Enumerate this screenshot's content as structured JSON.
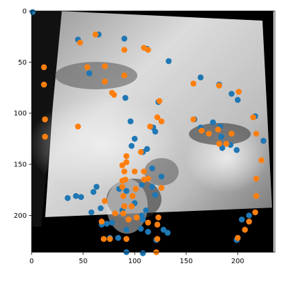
{
  "chart_data": {
    "type": "scatter",
    "title": "",
    "xlabel": "",
    "ylabel": "",
    "xlim": [
      0,
      236
    ],
    "ylim": [
      236,
      0
    ],
    "y_inverted": true,
    "grid": false,
    "xticks": [
      0,
      50,
      100,
      150,
      200
    ],
    "yticks": [
      0,
      50,
      100,
      150,
      200
    ],
    "background_image": "grayscale-rotated-face-photo",
    "series": [
      {
        "color": "#1f77b4",
        "points": [
          [
            1,
            1
          ],
          [
            45,
            28
          ],
          [
            65,
            23
          ],
          [
            90,
            27
          ],
          [
            56,
            61
          ],
          [
            112,
            37
          ],
          [
            133,
            49
          ],
          [
            91,
            85
          ],
          [
            123,
            89
          ],
          [
            164,
            65
          ],
          [
            182,
            72
          ],
          [
            194,
            81
          ],
          [
            200,
            87
          ],
          [
            158,
            106
          ],
          [
            164,
            114
          ],
          [
            176,
            109
          ],
          [
            183,
            113
          ],
          [
            184,
            123
          ],
          [
            193,
            131
          ],
          [
            199,
            136
          ],
          [
            185,
            134
          ],
          [
            217,
            103
          ],
          [
            225,
            127
          ],
          [
            211,
            200
          ],
          [
            204,
            204
          ],
          [
            199,
            224
          ],
          [
            118,
            114
          ],
          [
            112,
            135
          ],
          [
            120,
            118
          ],
          [
            108,
            138
          ],
          [
            126,
            162
          ],
          [
            117,
            154
          ],
          [
            117,
            172
          ],
          [
            107,
            170
          ],
          [
            100,
            188
          ],
          [
            111,
            195
          ],
          [
            107,
            200
          ],
          [
            108,
            204
          ],
          [
            88,
            195
          ],
          [
            73,
            208
          ],
          [
            78,
            207
          ],
          [
            68,
            209
          ],
          [
            67,
            193
          ],
          [
            58,
            197
          ],
          [
            43,
            181
          ],
          [
            48,
            182
          ],
          [
            35,
            183
          ],
          [
            60,
            177
          ],
          [
            92,
            176
          ],
          [
            85,
            174
          ],
          [
            92,
            214
          ],
          [
            106,
            213
          ],
          [
            113,
            216
          ],
          [
            128,
            214
          ],
          [
            132,
            217
          ],
          [
            121,
            224
          ],
          [
            84,
            222
          ],
          [
            76,
            222
          ],
          [
            100,
            125
          ],
          [
            97,
            132
          ],
          [
            96,
            108
          ],
          [
            120,
            180
          ],
          [
            63,
            172
          ],
          [
            92,
            236
          ],
          [
            108,
            237
          ]
        ]
      },
      {
        "color": "#ff7f0e",
        "points": [
          [
            47,
            31
          ],
          [
            62,
            23
          ],
          [
            90,
            38
          ],
          [
            109,
            36
          ],
          [
            113,
            38
          ],
          [
            54,
            55
          ],
          [
            71,
            54
          ],
          [
            90,
            63
          ],
          [
            71,
            69
          ],
          [
            78,
            80
          ],
          [
            80,
            82
          ],
          [
            124,
            88
          ],
          [
            122,
            104
          ],
          [
            157,
            71
          ],
          [
            182,
            73
          ],
          [
            201,
            79
          ],
          [
            12,
            55
          ],
          [
            12,
            72
          ],
          [
            13,
            106
          ],
          [
            13,
            123
          ],
          [
            45,
            113
          ],
          [
            157,
            106
          ],
          [
            165,
            117
          ],
          [
            172,
            120
          ],
          [
            181,
            116
          ],
          [
            182,
            130
          ],
          [
            189,
            130
          ],
          [
            194,
            120
          ],
          [
            215,
            104
          ],
          [
            218,
            120
          ],
          [
            223,
            146
          ],
          [
            218,
            164
          ],
          [
            218,
            181
          ],
          [
            217,
            197
          ],
          [
            211,
            206
          ],
          [
            207,
            214
          ],
          [
            200,
            222
          ],
          [
            115,
            113
          ],
          [
            126,
            108
          ],
          [
            106,
            138
          ],
          [
            92,
            142
          ],
          [
            92,
            148
          ],
          [
            88,
            151
          ],
          [
            90,
            157
          ],
          [
            100,
            157
          ],
          [
            109,
            157
          ],
          [
            113,
            164
          ],
          [
            126,
            173
          ],
          [
            101,
            174
          ],
          [
            91,
            165
          ],
          [
            88,
            172
          ],
          [
            89,
            181
          ],
          [
            98,
            181
          ],
          [
            90,
            191
          ],
          [
            97,
            191
          ],
          [
            89,
            198
          ],
          [
            102,
            202
          ],
          [
            94,
            204
          ],
          [
            123,
            202
          ],
          [
            113,
            207
          ],
          [
            122,
            209
          ],
          [
            81,
            198
          ],
          [
            71,
            186
          ],
          [
            68,
            206
          ],
          [
            92,
            223
          ],
          [
            76,
            223
          ],
          [
            70,
            223
          ],
          [
            122,
            223
          ],
          [
            88,
            166
          ],
          [
            121,
            236
          ],
          [
            109,
            165
          ]
        ]
      }
    ]
  }
}
